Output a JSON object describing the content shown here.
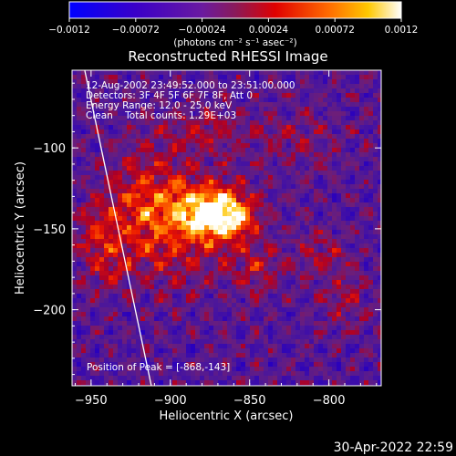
{
  "colorbar": {
    "ticks": [
      "-0.0012",
      "-0.00072",
      "-0.00024",
      "0.00024",
      "0.00072",
      "0.0012"
    ],
    "unit_label": "(photons cm⁻² s⁻¹ asec⁻²)",
    "range": [
      -0.0012,
      0.0012
    ]
  },
  "title": "Reconstructed RHESSI Image",
  "info_lines": [
    "12-Aug-2002 23:49:52.000 to 23:51:00.000",
    "Detectors: 3F 4F 5F 6F 7F 8F, Att 0",
    "Energy Range: 12.0 - 25.0 keV",
    "Clean    Total counts: 1.29E+03"
  ],
  "peak_label": "Position of Peak = [-868,-143]",
  "timestamp": "30-Apr-2022 22:59",
  "chart_data": {
    "type": "heatmap",
    "title": "Reconstructed RHESSI Image",
    "xlabel": "Heliocentric X (arcsec)",
    "ylabel": "Heliocentric Y (arcsec)",
    "xlim": [
      -962,
      -767
    ],
    "ylim": [
      -247,
      -52
    ],
    "x_ticks": [
      {
        "value": -950,
        "label": "−950"
      },
      {
        "value": -900,
        "label": "−900"
      },
      {
        "value": -850,
        "label": "−850"
      },
      {
        "value": -800,
        "label": "−800"
      }
    ],
    "y_ticks": [
      {
        "value": -100,
        "label": "−100"
      },
      {
        "value": -150,
        "label": "−150"
      },
      {
        "value": -200,
        "label": "−200"
      }
    ],
    "peak": {
      "x": -868,
      "y": -143
    },
    "colorscale": "rainbow-blue-to-red-to-white",
    "limb_line": [
      {
        "x": -954,
        "y": -52
      },
      {
        "x": -912,
        "y": -247
      }
    ],
    "sources": [
      {
        "x": -866,
        "y": -142,
        "sx": 14,
        "sy": 11,
        "amp": 1.05
      },
      {
        "x": -888,
        "y": -136,
        "sx": 20,
        "sy": 14,
        "amp": 0.55
      },
      {
        "x": -918,
        "y": -128,
        "sx": 16,
        "sy": 22,
        "amp": 0.4
      },
      {
        "x": -900,
        "y": -160,
        "sx": 26,
        "sy": 20,
        "amp": 0.38
      },
      {
        "x": -945,
        "y": -150,
        "sx": 10,
        "sy": 12,
        "amp": 0.45
      },
      {
        "x": -940,
        "y": -175,
        "sx": 10,
        "sy": 10,
        "amp": 0.3
      },
      {
        "x": -880,
        "y": -90,
        "sx": 20,
        "sy": 12,
        "amp": 0.3
      },
      {
        "x": -805,
        "y": -165,
        "sx": 10,
        "sy": 10,
        "amp": 0.32
      },
      {
        "x": -790,
        "y": -195,
        "sx": 10,
        "sy": 12,
        "amp": 0.3
      },
      {
        "x": -845,
        "y": -175,
        "sx": 12,
        "sy": 10,
        "amp": 0.35
      },
      {
        "x": -820,
        "y": -95,
        "sx": 20,
        "sy": 12,
        "amp": 0.22
      }
    ]
  }
}
